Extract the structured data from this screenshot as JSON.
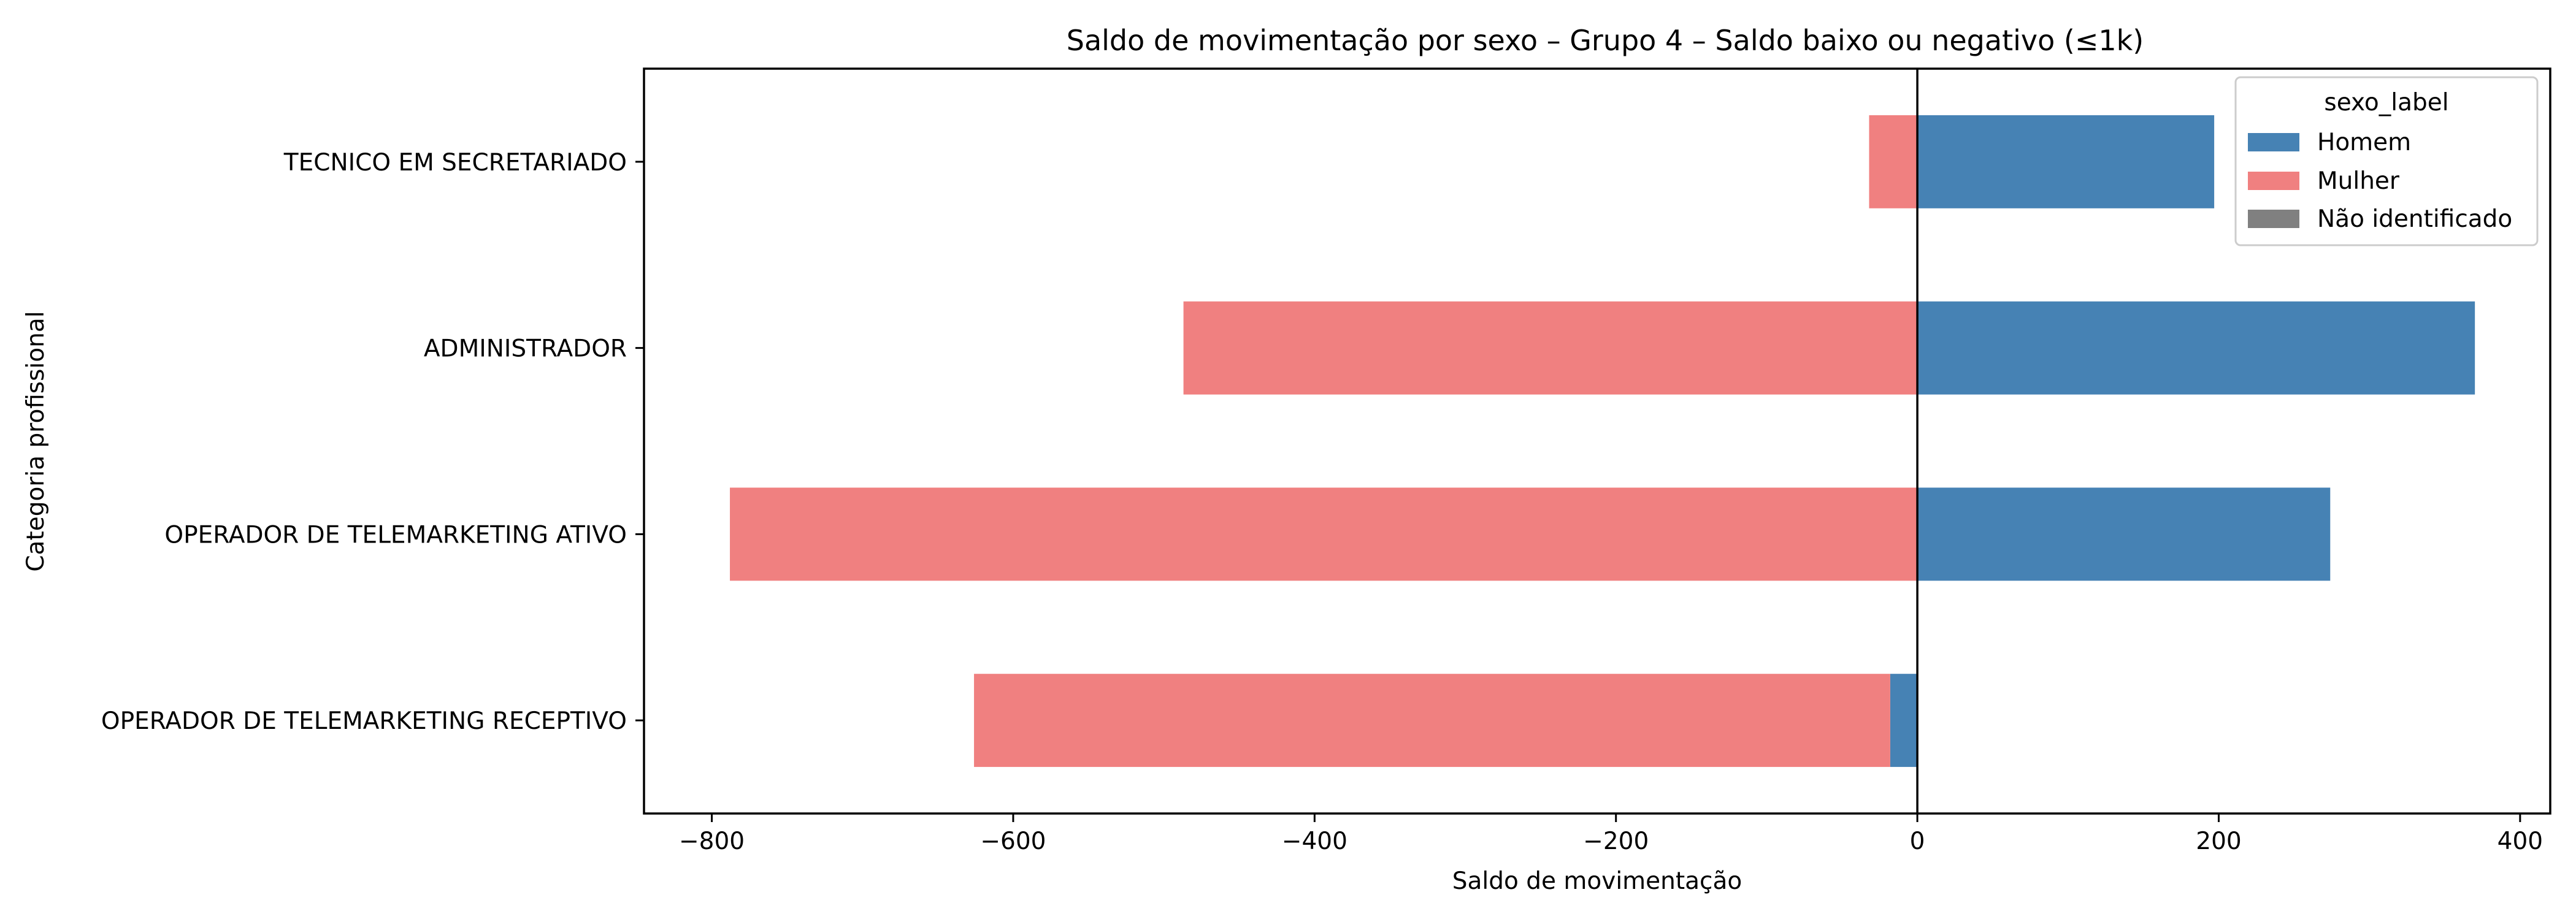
{
  "chart_data": {
    "type": "bar",
    "orientation": "horizontal",
    "stacked": "diverging",
    "title": "Saldo de movimentação por sexo – Grupo 4 – Saldo baixo ou negativo (≤1k)",
    "xlabel": "Saldo de movimentação",
    "ylabel": "Categoria profissional",
    "xlim": [
      -845,
      420
    ],
    "xticks": [
      -800,
      -600,
      -400,
      -200,
      0,
      200,
      400
    ],
    "xtick_labels": [
      "−800",
      "−600",
      "−400",
      "−200",
      "0",
      "200",
      "400"
    ],
    "categories": [
      "TECNICO EM SECRETARIADO",
      "ADMINISTRADOR",
      "OPERADOR DE TELEMARKETING ATIVO",
      "OPERADOR DE TELEMARKETING RECEPTIVO"
    ],
    "series": [
      {
        "name": "Homem",
        "color": "#4682b4",
        "values": [
          197,
          370,
          274,
          -18
        ]
      },
      {
        "name": "Mulher",
        "color": "#f08080",
        "values": [
          -32,
          -487,
          -788,
          -608
        ]
      },
      {
        "name": "Não identificado",
        "color": "#808080",
        "values": [
          0,
          0,
          0,
          0
        ]
      }
    ],
    "legend": {
      "title": "sexo_label",
      "position": "top-right"
    },
    "zero_line": true,
    "grid": false
  }
}
